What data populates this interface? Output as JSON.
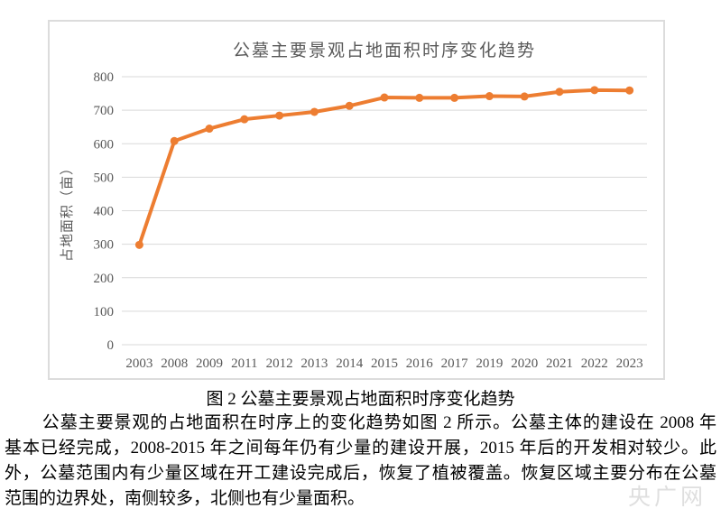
{
  "figure": {
    "caption": "图 2  公墓主要景观占地面积时序变化趋势"
  },
  "paragraph": {
    "lines": [
      "公墓主要景观的占地面积在时序上的变化趋势如图 2 所示。公墓主体的建设在 2008 年",
      "基本已经完成，2008-2015 年之间每年仍有少量的建设开展，2015 年后的开发相对较少。此",
      "外，公墓范围内有少量区域在开工建设完成后，恢复了植被覆盖。恢复区域主要分布在公墓",
      "范围的边界处，南侧较多，北侧也有少量面积。"
    ]
  },
  "watermark": {
    "text": "央广网"
  },
  "chart_data": {
    "type": "line",
    "title": "公墓主要景观占地面积时序变化趋势",
    "xlabel": "",
    "ylabel": "占地面积（亩）",
    "categories": [
      "2003",
      "2008",
      "2009",
      "2011",
      "2012",
      "2013",
      "2014",
      "2015",
      "2016",
      "2017",
      "2019",
      "2020",
      "2021",
      "2022",
      "2023"
    ],
    "values": [
      298,
      608,
      645,
      673,
      684,
      695,
      713,
      738,
      737,
      737,
      742,
      741,
      755,
      760,
      759
    ],
    "ylim": [
      0,
      800
    ],
    "ytick_step": 100,
    "grid": true,
    "legend": "none",
    "line_color": "#ED7D31",
    "marker": "circle",
    "grid_color": "#D9D9D9",
    "axis_text_color": "#595959"
  }
}
